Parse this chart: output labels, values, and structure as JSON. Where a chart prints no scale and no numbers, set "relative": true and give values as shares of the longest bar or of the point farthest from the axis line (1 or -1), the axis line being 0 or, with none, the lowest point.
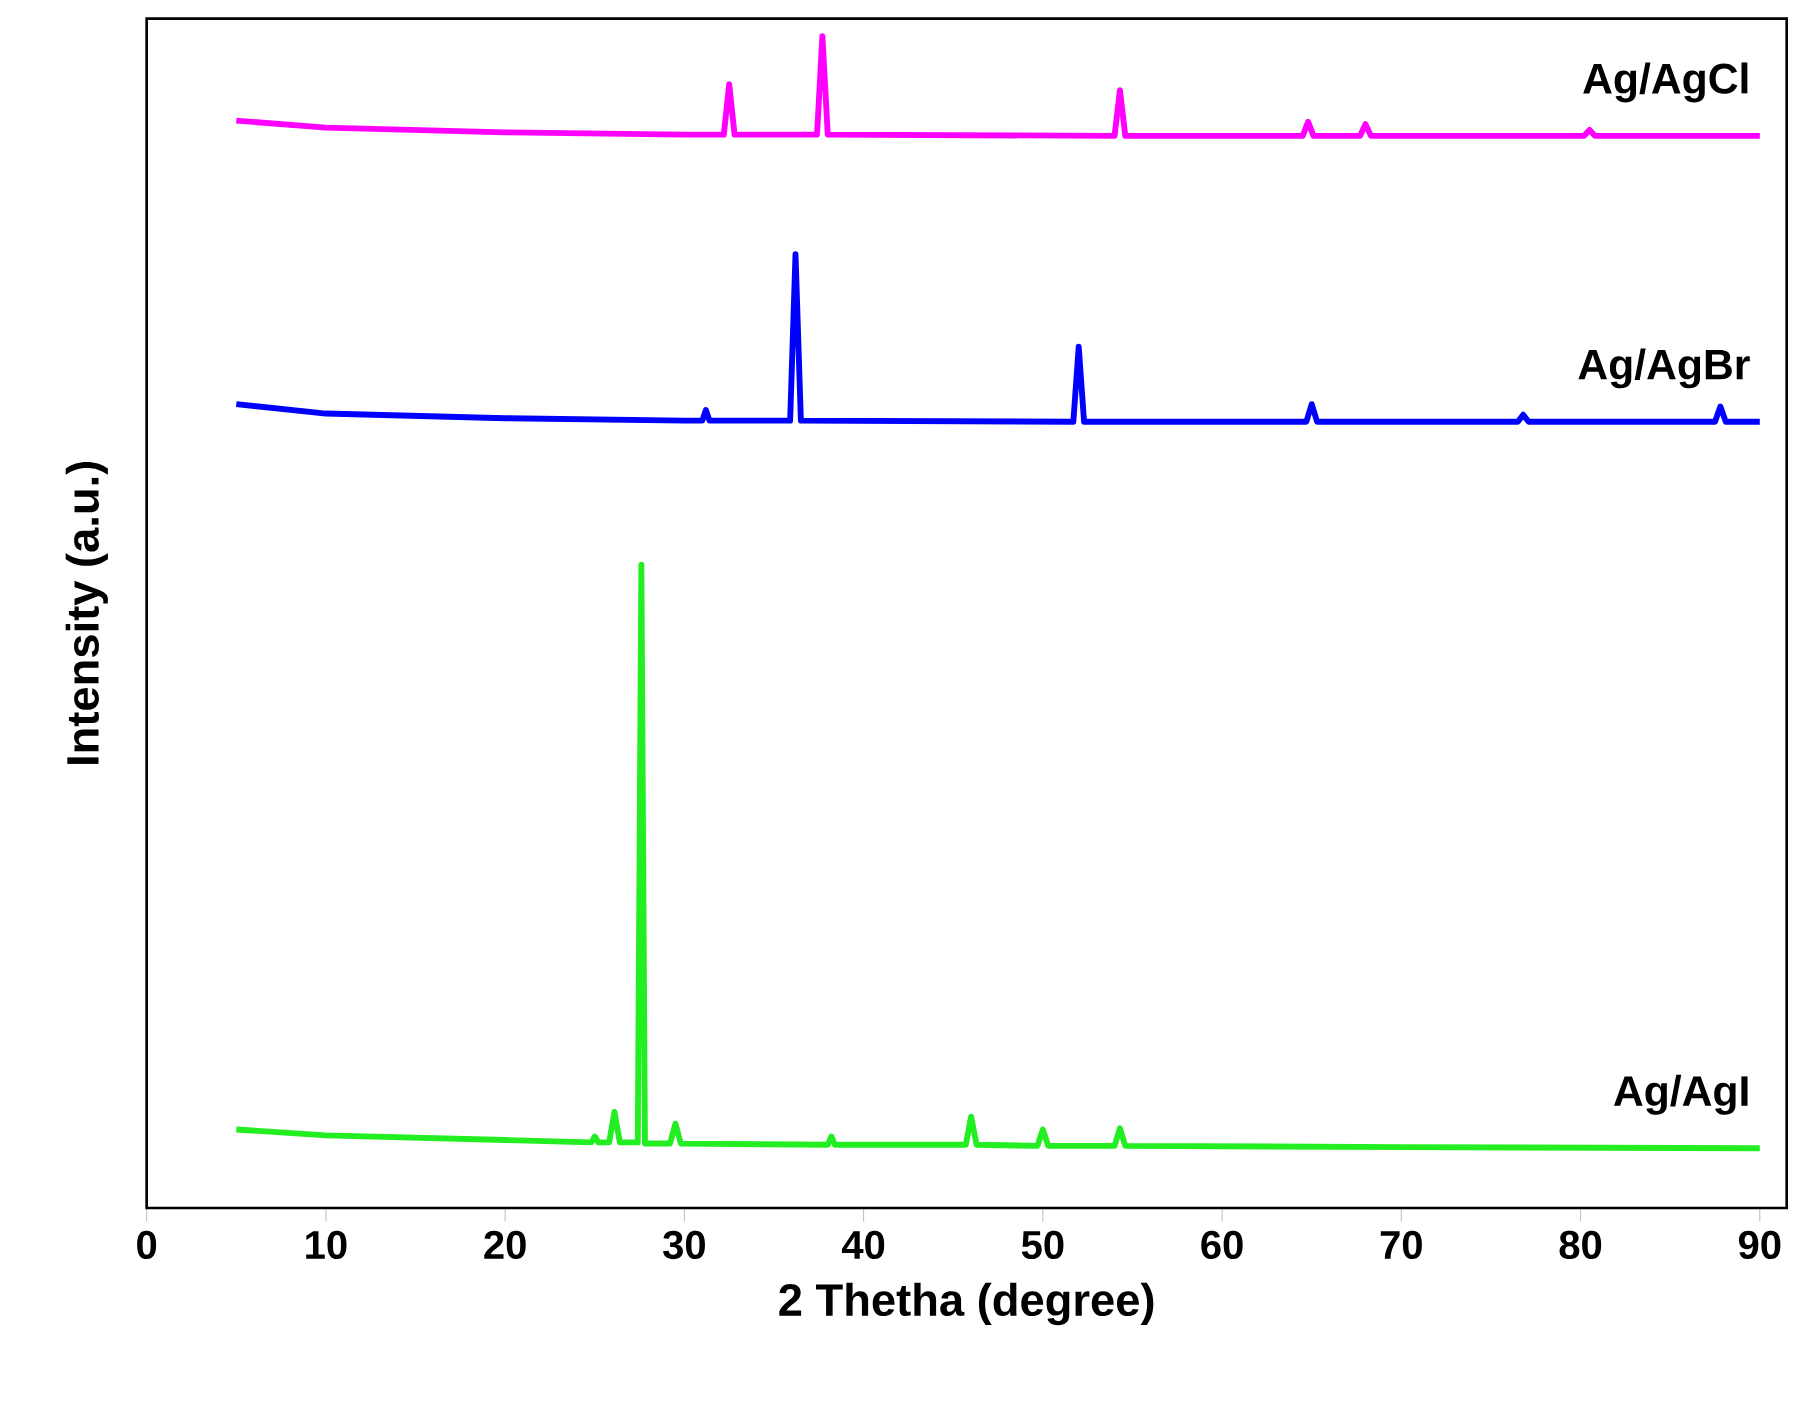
{
  "chart_data": {
    "type": "line",
    "xlabel": "2 Thetha (degree)",
    "ylabel": "Intensity (a.u.)",
    "relative": true,
    "xlim": [
      0,
      91.5
    ],
    "xticks": [
      0,
      10,
      20,
      30,
      40,
      50,
      60,
      70,
      80,
      90
    ],
    "grid": false,
    "marker": "none",
    "line_style": "solid",
    "series": [
      {
        "name": "Ag/AgCl",
        "color": "#ff00ff",
        "x": [
          5,
          10,
          20,
          30,
          32.2,
          32.5,
          32.8,
          37.4,
          37.7,
          38.0,
          54.0,
          54.3,
          54.6,
          64.5,
          64.8,
          65.1,
          67.7,
          68.0,
          68.3,
          80.2,
          80.5,
          80.8,
          90
        ],
        "values": [
          0.928,
          0.922,
          0.918,
          0.916,
          0.916,
          0.959,
          0.916,
          0.916,
          1.0,
          0.916,
          0.915,
          0.954,
          0.915,
          0.915,
          0.927,
          0.915,
          0.915,
          0.925,
          0.915,
          0.915,
          0.92,
          0.915,
          0.915
        ]
      },
      {
        "name": "Ag/AgBr",
        "color": "#0000ff",
        "x": [
          5,
          10,
          20,
          30,
          31.0,
          31.2,
          31.4,
          35.9,
          36.2,
          36.5,
          51.7,
          52.0,
          52.3,
          64.7,
          65.0,
          65.3,
          76.5,
          76.8,
          77.1,
          87.5,
          87.8,
          88.1,
          90
        ],
        "values": [
          0.686,
          0.678,
          0.674,
          0.672,
          0.672,
          0.681,
          0.672,
          0.672,
          0.814,
          0.672,
          0.671,
          0.735,
          0.671,
          0.671,
          0.686,
          0.671,
          0.671,
          0.677,
          0.671,
          0.671,
          0.684,
          0.671,
          0.671
        ]
      },
      {
        "name": "Ag/AgI",
        "color": "#22ee22",
        "x": [
          5,
          10,
          20,
          24.8,
          25.0,
          25.2,
          25.8,
          26.1,
          26.4,
          27.4,
          27.6,
          27.8,
          29.2,
          29.5,
          29.8,
          38.0,
          38.2,
          38.4,
          45.7,
          46.0,
          46.3,
          49.7,
          50.0,
          50.3,
          54.0,
          54.3,
          54.6,
          70,
          90
        ],
        "values": [
          0.067,
          0.062,
          0.058,
          0.056,
          0.061,
          0.056,
          0.056,
          0.082,
          0.056,
          0.056,
          0.549,
          0.055,
          0.055,
          0.072,
          0.055,
          0.054,
          0.061,
          0.054,
          0.054,
          0.078,
          0.054,
          0.053,
          0.067,
          0.053,
          0.053,
          0.068,
          0.053,
          0.052,
          0.051
        ]
      }
    ]
  }
}
